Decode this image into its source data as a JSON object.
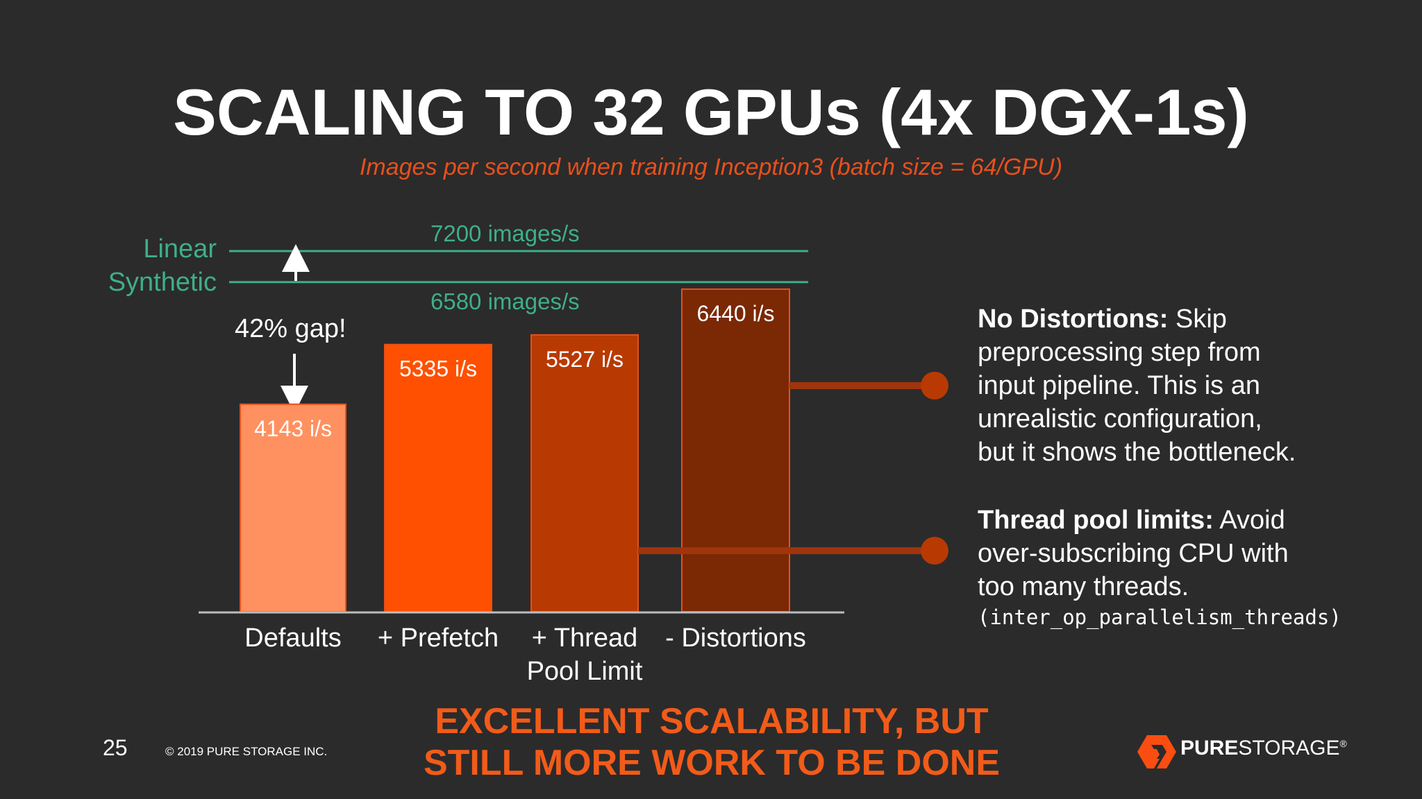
{
  "slide": {
    "title": "SCALING TO 32 GPUs (4x DGX-1s)",
    "subtitle": "Images per second when training Inception3 (batch size = 64/GPU)",
    "page_number": "25",
    "copyright": "© 2019 PURE STORAGE INC.",
    "banner_line1": "EXCELLENT SCALABILITY, BUT",
    "banner_line2": "STILL MORE WORK TO BE DONE",
    "logo_bold": "PURE",
    "logo_light": "STORAGE",
    "logo_mark": "®"
  },
  "reference_lines": {
    "linear_label": "Linear",
    "linear_value_label": "7200 images/s",
    "linear_value": 7200,
    "synthetic_label": "Synthetic",
    "synthetic_value_label": "6580 images/s",
    "synthetic_value": 6580,
    "gap_label": "42% gap!",
    "color": "#3fae88"
  },
  "callouts": {
    "distortions_bold": "No Distortions:",
    "distortions_text1": " Skip",
    "distortions_text2": "preprocessing step from",
    "distortions_text3": "input pipeline. This is an",
    "distortions_text4": "unrealistic configuration,",
    "distortions_text5": "but it shows the bottleneck.",
    "threads_bold": "Thread pool limits:",
    "threads_text1": " Avoid",
    "threads_text2": "over-subscribing CPU with",
    "threads_text3": "too many threads.",
    "threads_code": "(inter_op_parallelism_threads)"
  },
  "chart_data": {
    "type": "bar",
    "title": "SCALING TO 32 GPUs (4x DGX-1s)",
    "subtitle": "Images per second when training Inception3 (batch size = 64/GPU)",
    "categories": [
      "Defaults",
      "+ Prefetch",
      "+ Thread Pool Limit",
      "- Distortions"
    ],
    "category_lines": [
      [
        "Defaults"
      ],
      [
        "+ Prefetch"
      ],
      [
        "+ Thread",
        "Pool Limit"
      ],
      [
        "- Distortions"
      ]
    ],
    "values": [
      4143,
      5335,
      5527,
      6440
    ],
    "value_labels": [
      "4143 i/s",
      "5335 i/s",
      "5527 i/s",
      "6440 i/s"
    ],
    "bar_colors": [
      "#ff9160",
      "#fe5000",
      "#b83a02",
      "#7b2804"
    ],
    "xlabel": "",
    "ylabel": "",
    "ylim": [
      0,
      7200
    ],
    "grid": false,
    "legend": "none"
  }
}
